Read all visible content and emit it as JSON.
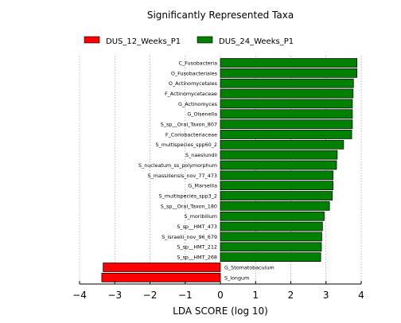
{
  "chart_data": {
    "type": "bar",
    "orientation": "horizontal",
    "title": "Significantly Represented Taxa",
    "xlabel": "LDA SCORE (log 10)",
    "ylabel": "",
    "xlim": [
      -4,
      4
    ],
    "xticks": [
      -4,
      -3,
      -2,
      -1,
      0,
      1,
      2,
      3,
      4
    ],
    "xtick_labels": [
      "−4",
      "−3",
      "−2",
      "−1",
      "0",
      "1",
      "2",
      "3",
      "4"
    ],
    "grid": "vertical dotted",
    "legend_position": "top",
    "series": [
      {
        "name": "DUS_12_Weeks_P1",
        "color": "#ff0000"
      },
      {
        "name": "DUS_24_Weeks_P1",
        "color": "#008000"
      }
    ],
    "bars": [
      {
        "label": "C_Fusobacteria",
        "value": 3.88,
        "series": "DUS_24_Weeks_P1"
      },
      {
        "label": "O_Fusobacteriales",
        "value": 3.88,
        "series": "DUS_24_Weeks_P1"
      },
      {
        "label": "O_Actinomycetales",
        "value": 3.78,
        "series": "DUS_24_Weeks_P1"
      },
      {
        "label": "F_Actinomycetaceae",
        "value": 3.77,
        "series": "DUS_24_Weeks_P1"
      },
      {
        "label": "G_Actinomyces",
        "value": 3.75,
        "series": "DUS_24_Weeks_P1"
      },
      {
        "label": "G_Olsenella",
        "value": 3.75,
        "series": "DUS_24_Weeks_P1"
      },
      {
        "label": "S_sp__Oral_Taxon_807",
        "value": 3.75,
        "series": "DUS_24_Weeks_P1"
      },
      {
        "label": "F_Coriobacteriaceae",
        "value": 3.73,
        "series": "DUS_24_Weeks_P1"
      },
      {
        "label": "S_multispecies_spp60_2",
        "value": 3.5,
        "series": "DUS_24_Weeks_P1"
      },
      {
        "label": "S_naeslundii",
        "value": 3.32,
        "series": "DUS_24_Weeks_P1"
      },
      {
        "label": "S_nucleatum_ss_polymorphum",
        "value": 3.3,
        "series": "DUS_24_Weeks_P1"
      },
      {
        "label": "S_massiliensis_nov_77_473",
        "value": 3.2,
        "series": "DUS_24_Weeks_P1"
      },
      {
        "label": "G_Marseilla",
        "value": 3.2,
        "series": "DUS_24_Weeks_P1"
      },
      {
        "label": "S_multispecies_spp3_2",
        "value": 3.18,
        "series": "DUS_24_Weeks_P1"
      },
      {
        "label": "S_sp__Oral_Taxon_180",
        "value": 3.1,
        "series": "DUS_24_Weeks_P1"
      },
      {
        "label": "S_moribillum",
        "value": 2.95,
        "series": "DUS_24_Weeks_P1"
      },
      {
        "label": "S_sp__HMT_473",
        "value": 2.9,
        "series": "DUS_24_Weeks_P1"
      },
      {
        "label": "S_israelii_nov_96_679",
        "value": 2.88,
        "series": "DUS_24_Weeks_P1"
      },
      {
        "label": "S_sp__HMT_212",
        "value": 2.87,
        "series": "DUS_24_Weeks_P1"
      },
      {
        "label": "S_sp__HMT_268",
        "value": 2.85,
        "series": "DUS_24_Weeks_P1"
      },
      {
        "label": "G_Stomatobaculum",
        "value": -3.33,
        "series": "DUS_12_Weeks_P1"
      },
      {
        "label": "S_longum",
        "value": -3.37,
        "series": "DUS_12_Weeks_P1"
      }
    ]
  }
}
